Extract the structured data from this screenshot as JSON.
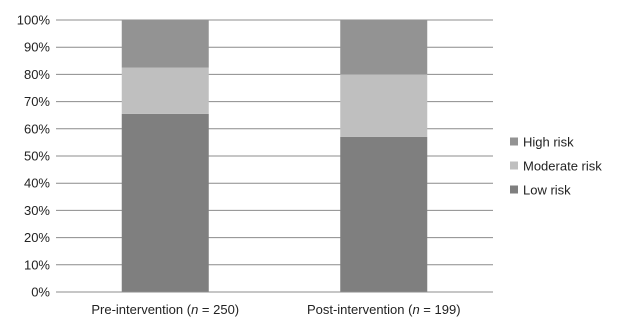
{
  "chart_data": {
    "type": "bar",
    "stacked": true,
    "percent": true,
    "categories": [
      {
        "prefix": "Pre-intervention (",
        "italic": "n",
        "suffix": " = 250)"
      },
      {
        "prefix": "Post-intervention (",
        "italic": "n",
        "suffix": " = 199)"
      }
    ],
    "series": [
      {
        "name": "Low risk",
        "values": [
          65.5,
          57
        ],
        "color": "#7f7f7f"
      },
      {
        "name": "Moderate risk",
        "values": [
          17,
          23
        ],
        "color": "#bfbfbf"
      },
      {
        "name": "High risk",
        "values": [
          17.5,
          20
        ],
        "color": "#939393"
      }
    ],
    "ylim": [
      0,
      100
    ],
    "yticks": [
      "0%",
      "10%",
      "20%",
      "30%",
      "40%",
      "50%",
      "60%",
      "70%",
      "80%",
      "90%",
      "100%"
    ],
    "grid": true,
    "legend_position": "right",
    "legend_order": [
      "High risk",
      "Moderate risk",
      "Low risk"
    ]
  }
}
